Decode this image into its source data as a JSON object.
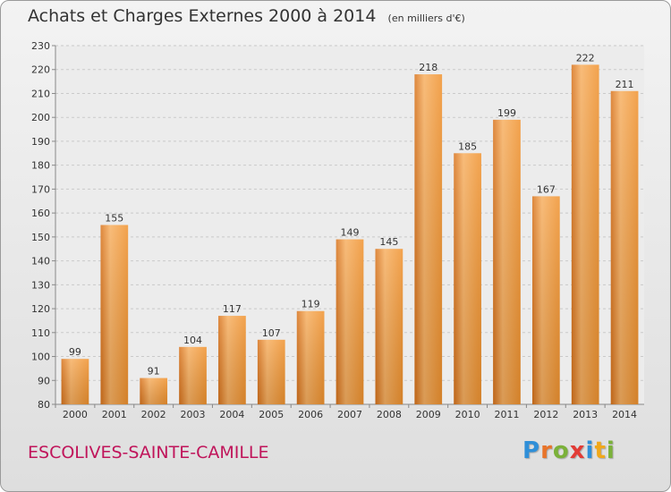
{
  "header": {
    "title": "Achats et Charges Externes 2000 à 2014",
    "unit": "(en milliers d'€)"
  },
  "footer": {
    "city": "ESCOLIVES-SAINTE-CAMILLE",
    "logo_letters": [
      "P",
      "r",
      "o",
      "x",
      "i",
      "t",
      "i"
    ],
    "logo_colors": [
      "#2f8fd8",
      "#e8742a",
      "#7bb13a",
      "#e23b35",
      "#2f8fd8",
      "#f0a81a",
      "#7bb13a"
    ]
  },
  "chart_data": {
    "type": "bar",
    "categories": [
      "2000",
      "2001",
      "2002",
      "2003",
      "2004",
      "2005",
      "2006",
      "2007",
      "2008",
      "2009",
      "2010",
      "2011",
      "2012",
      "2013",
      "2014"
    ],
    "values": [
      99,
      155,
      91,
      104,
      117,
      107,
      119,
      149,
      145,
      218,
      185,
      199,
      167,
      222,
      211
    ],
    "title": "Achats et Charges Externes 2000 à 2014",
    "ylim": [
      80,
      230
    ],
    "yticks": [
      80,
      90,
      100,
      110,
      120,
      130,
      140,
      150,
      160,
      170,
      180,
      190,
      200,
      210,
      220,
      230
    ],
    "grid": true,
    "bar_color": "#f0922e",
    "bar_color_light": "#f7b062",
    "bar_color_dark": "#d8731c"
  }
}
